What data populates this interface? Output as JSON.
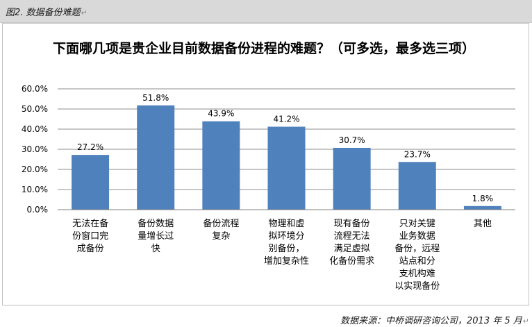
{
  "caption": {
    "label": "图2.  数据备份难题",
    "mark": "↵"
  },
  "footer": {
    "source": "数据来源：中桥调研咨询公司，2013 年 5 月",
    "mark": "↵"
  },
  "chart_data": {
    "type": "bar",
    "title": "下面哪几项是贵企业目前数据备份进程的难题？（可多选，最多选三项）",
    "xlabel": "",
    "ylabel": "",
    "categories": [
      [
        "无法在备",
        "份窗口完",
        "成备份"
      ],
      [
        "备份数据",
        "量增长过",
        "快"
      ],
      [
        "备份流程",
        "复杂"
      ],
      [
        "物理和虚",
        "拟环境分",
        "别备份，",
        "增加复杂性"
      ],
      [
        "现有备份",
        "流程无法",
        "满足虚拟",
        "化备份需求"
      ],
      [
        "只对关键",
        "业务数据",
        "备份，远程",
        "站点和分",
        "支机构难",
        "以实现备份"
      ],
      [
        "其他"
      ]
    ],
    "values": [
      27.2,
      51.8,
      43.9,
      41.2,
      30.7,
      23.7,
      1.8
    ],
    "value_labels": [
      "27.2%",
      "51.8%",
      "43.9%",
      "41.2%",
      "30.7%",
      "23.7%",
      "1.8%"
    ],
    "ylim": [
      0,
      60
    ],
    "yticks": [
      0,
      10,
      20,
      30,
      40,
      50,
      60
    ],
    "ytick_labels": [
      "0.0%",
      "10.0%",
      "20.0%",
      "30.0%",
      "40.0%",
      "50.0%",
      "60.0%"
    ],
    "grid": true,
    "legend": "none",
    "bar_color": "#4f81bd",
    "grid_color": "#8c8c8c"
  }
}
